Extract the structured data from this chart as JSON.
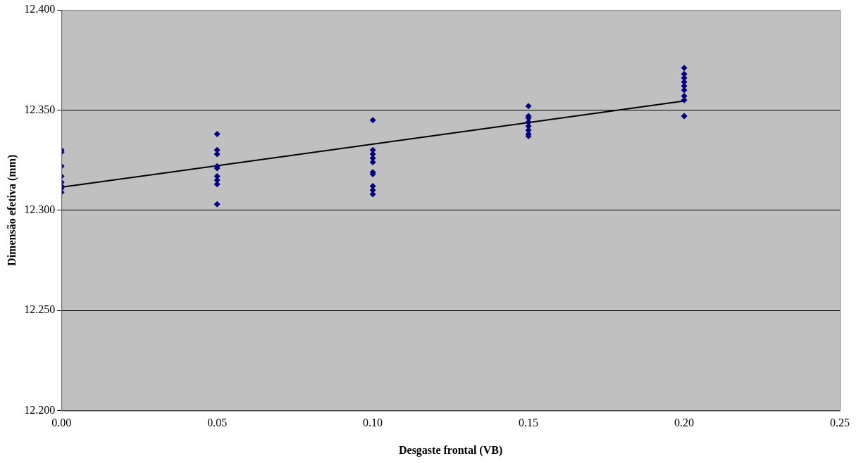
{
  "chart_data": {
    "type": "scatter",
    "xlabel": "Desgaste frontal (VB)",
    "ylabel": "Dimensão efetiva (mm)",
    "xlim": [
      0,
      0.25
    ],
    "xticks": [
      {
        "value": 0,
        "label": "0.00"
      },
      {
        "value": 0.05,
        "label": "0.05"
      },
      {
        "value": 0.1,
        "label": "0.10"
      },
      {
        "value": 0.15,
        "label": "0.15"
      },
      {
        "value": 0.2,
        "label": "0.20"
      },
      {
        "value": 0.25,
        "label": "0.25"
      }
    ],
    "ylim": [
      12.2,
      12.4
    ],
    "yticks": [
      {
        "value": 12.2,
        "label": "12.200"
      },
      {
        "value": 12.25,
        "label": "12.250"
      },
      {
        "value": 12.3,
        "label": "12.300"
      },
      {
        "value": 12.35,
        "label": "12.350"
      },
      {
        "value": 12.4,
        "label": "12.400"
      }
    ],
    "grid": "y",
    "marker": "diamond",
    "series": [
      {
        "color": "#000080",
        "x": [
          0,
          0,
          0,
          0,
          0,
          0,
          0,
          0,
          0.05,
          0.05,
          0.05,
          0.05,
          0.05,
          0.05,
          0.05,
          0.05,
          0.05,
          0.1,
          0.1,
          0.1,
          0.1,
          0.1,
          0.1,
          0.1,
          0.1,
          0.1,
          0.1,
          0.15,
          0.15,
          0.15,
          0.15,
          0.15,
          0.15,
          0.15,
          0.15,
          0.2,
          0.2,
          0.2,
          0.2,
          0.2,
          0.2,
          0.2,
          0.2,
          0.2
        ],
        "values": [
          12.33,
          12.329,
          12.322,
          12.317,
          12.314,
          12.312,
          12.311,
          12.309,
          12.338,
          12.33,
          12.328,
          12.322,
          12.321,
          12.317,
          12.315,
          12.313,
          12.303,
          12.345,
          12.33,
          12.328,
          12.326,
          12.324,
          12.319,
          12.318,
          12.312,
          12.31,
          12.308,
          12.352,
          12.347,
          12.346,
          12.344,
          12.342,
          12.34,
          12.338,
          12.337,
          12.371,
          12.368,
          12.366,
          12.364,
          12.362,
          12.36,
          12.357,
          12.355,
          12.347
        ]
      },
      {
        "type": "line",
        "color": "#000000",
        "x": [
          0,
          0.2
        ],
        "values": [
          12.3115,
          12.3545
        ],
        "marker": "none"
      }
    ]
  }
}
